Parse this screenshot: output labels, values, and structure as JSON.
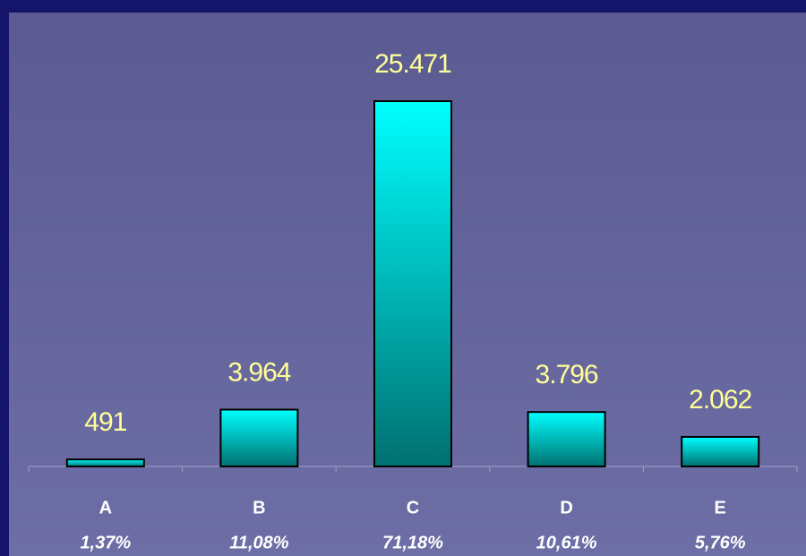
{
  "chart_data": {
    "type": "bar",
    "categories": [
      "A",
      "B",
      "C",
      "D",
      "E"
    ],
    "category_notes": [
      "1,37%",
      "11,08%",
      "71,18%",
      "10,61%",
      "5,76%"
    ],
    "values": [
      491,
      3964,
      25471,
      3796,
      2062
    ],
    "value_labels": [
      "491",
      "3.964",
      "25.471",
      "3.796",
      "2.062"
    ],
    "color": "#00ffff"
  }
}
